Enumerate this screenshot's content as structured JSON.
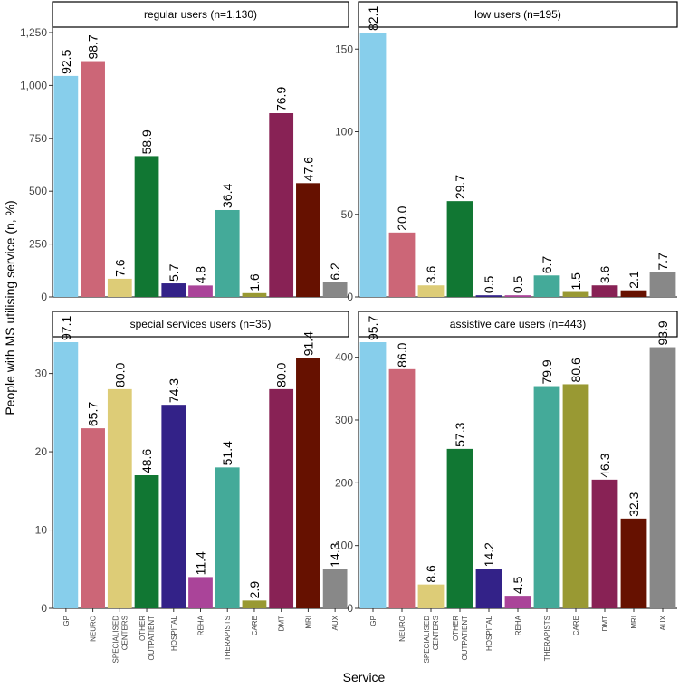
{
  "chart_data": {
    "type": "bar",
    "xlabel": "Service",
    "ylabel": "People with MS utilising service (n, %)",
    "categories": [
      "GP",
      "NEURO",
      "SPECIALISED CENTERS",
      "OTHER OUTPATIENT",
      "HOSPITAL",
      "REHA",
      "THERAPISTS",
      "CARE",
      "DMT",
      "MRI",
      "AUX"
    ],
    "category_tick_labels": [
      [
        "GP"
      ],
      [
        "NEURO"
      ],
      [
        "SPECIALISED",
        "CENTERS"
      ],
      [
        "OTHER",
        "OUTPATIENT"
      ],
      [
        "HOSPITAL"
      ],
      [
        "REHA"
      ],
      [
        "THERAPISTS"
      ],
      [
        "CARE"
      ],
      [
        "DMT"
      ],
      [
        "MRI"
      ],
      [
        "AUX"
      ]
    ],
    "colors": {
      "GP": "#87CEEB",
      "NEURO": "#CC6677",
      "SPECIALISED CENTERS": "#DDCC77",
      "OTHER OUTPATIENT": "#117733",
      "HOSPITAL": "#332288",
      "REHA": "#AA4499",
      "THERAPISTS": "#44AA99",
      "CARE": "#999933",
      "DMT": "#882255",
      "MRI": "#661100",
      "AUX": "#888888"
    },
    "panels": [
      {
        "title": "regular users (n=1,130)",
        "ylim": [
          0,
          1250
        ],
        "yticks": [
          0,
          250,
          500,
          750,
          1000,
          1250
        ],
        "ytick_labels": [
          "0",
          "250",
          "500",
          "750",
          "1,000",
          "1,250"
        ],
        "values": [
          1045,
          1115,
          86,
          666,
          64,
          54,
          411,
          18,
          869,
          538,
          70
        ],
        "labels": [
          "92.5",
          "98.7",
          "7.6",
          "58.9",
          "5.7",
          "4.8",
          "36.4",
          "1.6",
          "76.9",
          "47.6",
          "6.2"
        ],
        "show_x_ticks": false
      },
      {
        "title": "low users (n=195)",
        "ylim": [
          0,
          160
        ],
        "yticks": [
          0,
          50,
          100,
          150
        ],
        "ytick_labels": [
          "0",
          "50",
          "100",
          "150"
        ],
        "values": [
          160,
          39,
          7,
          58,
          1,
          1,
          13,
          3,
          7,
          4,
          15
        ],
        "labels": [
          "82.1",
          "20.0",
          "3.6",
          "29.7",
          "0.5",
          "0.5",
          "6.7",
          "1.5",
          "3.6",
          "2.1",
          "7.7"
        ],
        "show_x_ticks": false
      },
      {
        "title": "special services users (n=35)",
        "ylim": [
          0,
          34
        ],
        "yticks": [
          0,
          10,
          20,
          30
        ],
        "ytick_labels": [
          "0",
          "10",
          "20",
          "30"
        ],
        "values": [
          34,
          23,
          28,
          17,
          26,
          4,
          18,
          1,
          28,
          32,
          5
        ],
        "labels": [
          "97.1",
          "65.7",
          "80.0",
          "48.6",
          "74.3",
          "11.4",
          "51.4",
          "2.9",
          "80.0",
          "91.4",
          "14.3"
        ],
        "show_x_ticks": true
      },
      {
        "title": "assistive care users (n=443)",
        "ylim": [
          0,
          424
        ],
        "yticks": [
          0,
          100,
          200,
          300,
          400
        ],
        "ytick_labels": [
          "0",
          "100",
          "200",
          "300",
          "400"
        ],
        "values": [
          424,
          381,
          38,
          254,
          63,
          20,
          354,
          357,
          205,
          143,
          416
        ],
        "labels": [
          "95.7",
          "86.0",
          "8.6",
          "57.3",
          "14.2",
          "4.5",
          "79.9",
          "80.6",
          "46.3",
          "32.3",
          "93.9"
        ],
        "show_x_ticks": true
      }
    ]
  }
}
